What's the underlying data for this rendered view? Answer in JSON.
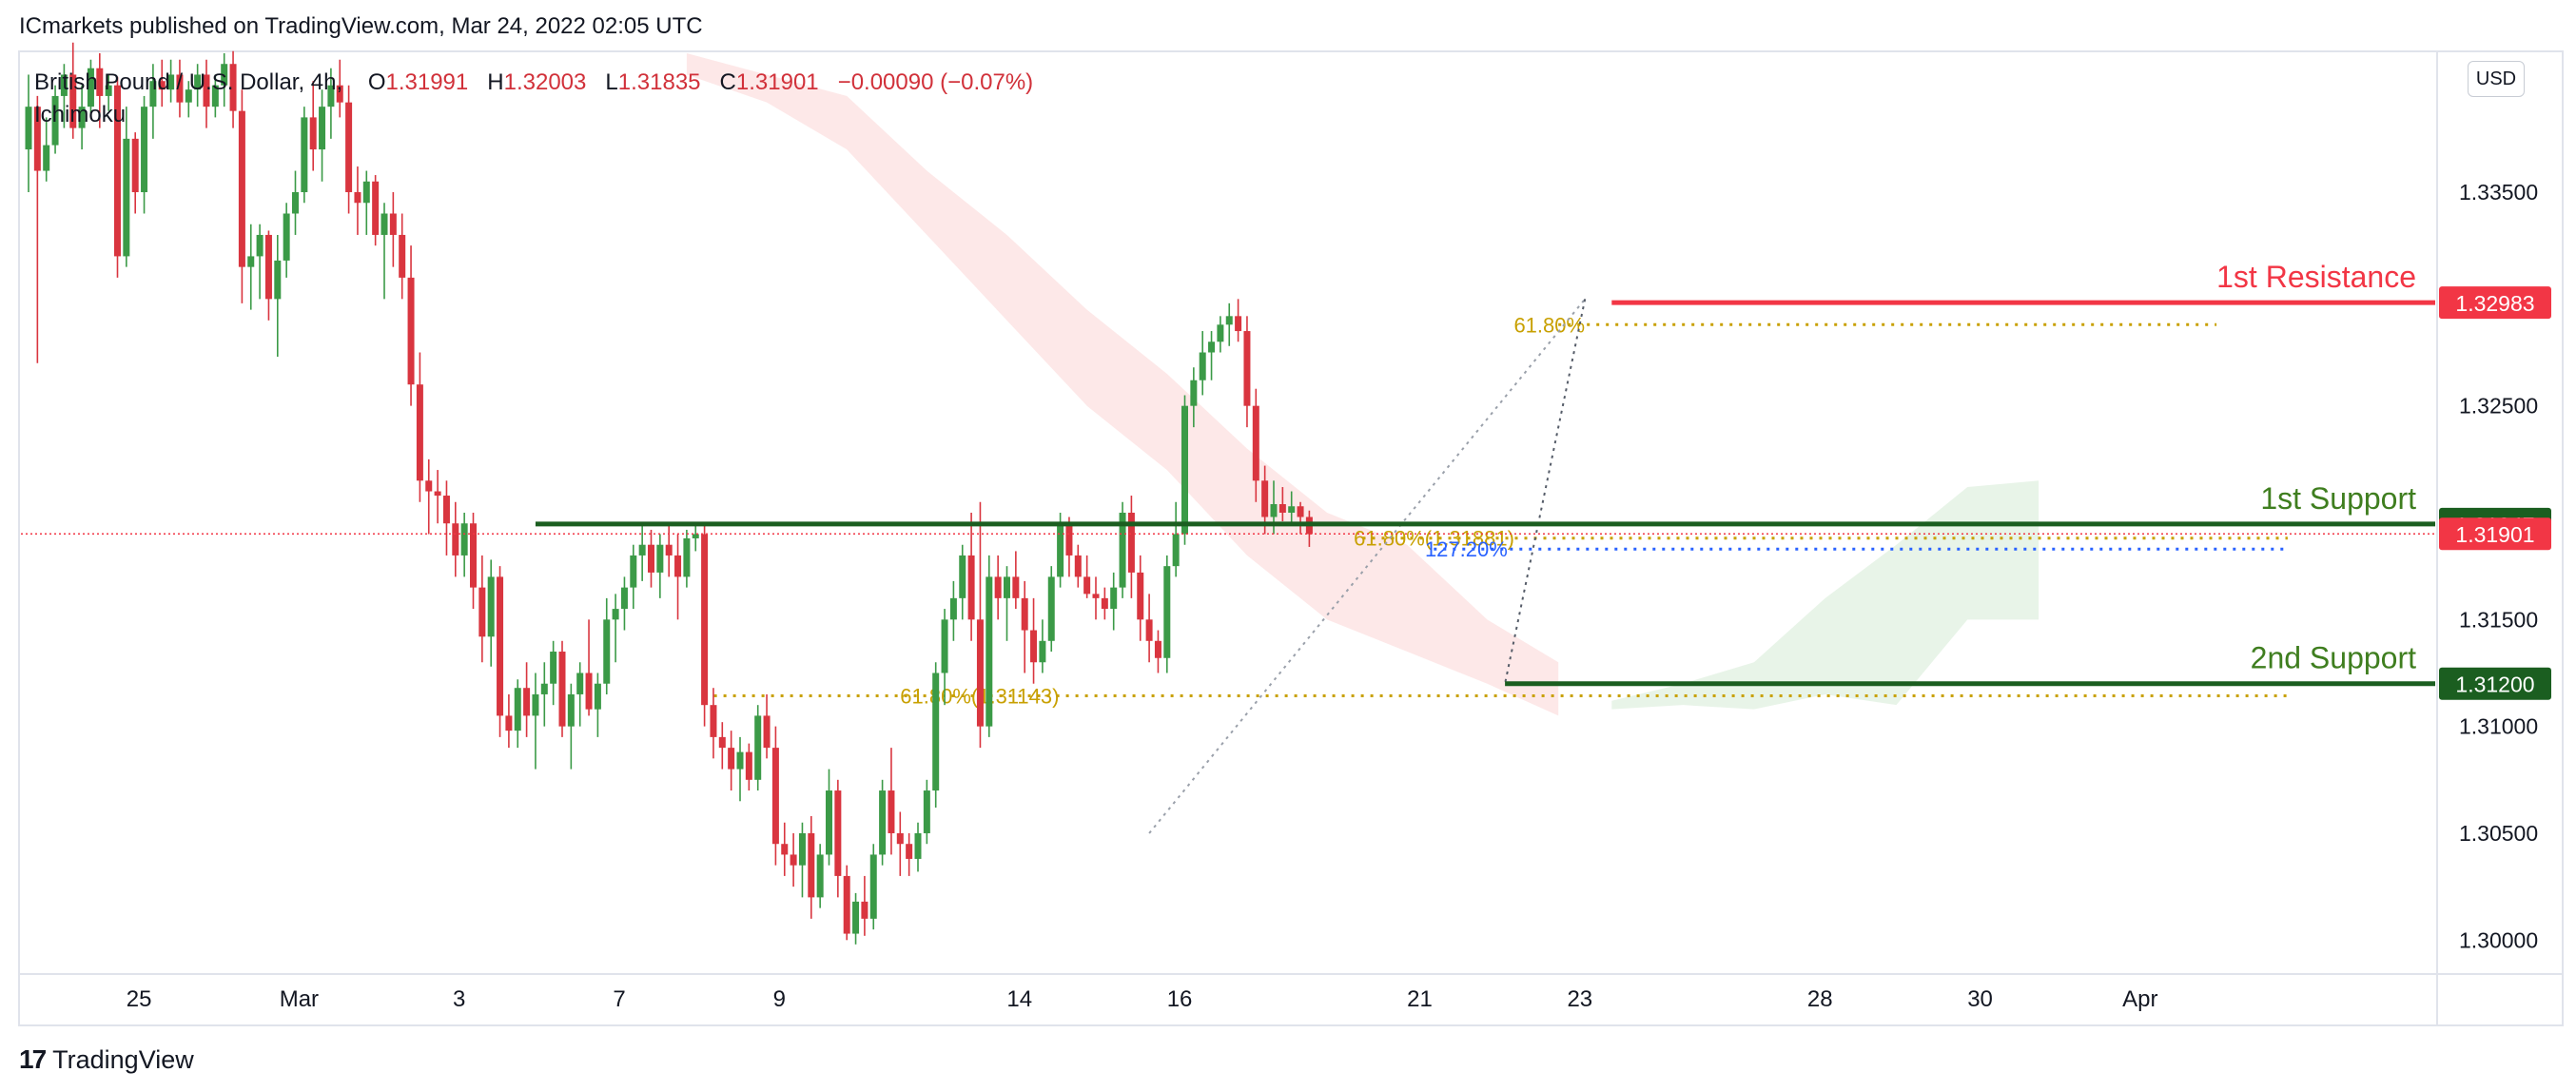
{
  "header": {
    "published_by": "ICmarkets published on TradingView.com, Mar 24, 2022 02:05 UTC"
  },
  "legend": {
    "symbol": "British Pound / U.S. Dollar, 4h,",
    "open_label": "O",
    "open": "1.31991",
    "high_label": "H",
    "high": "1.32003",
    "low_label": "L",
    "low": "1.31835",
    "close_label": "C",
    "close": "1.31901",
    "change": "−0.00090 (−0.07%)",
    "indicator": "Ichimoku"
  },
  "currency_badge": "USD",
  "footer": {
    "brand": "TradingView",
    "logo_icon": "tradingview-logo-icon"
  },
  "colors": {
    "bull": "#3b9a47",
    "bear": "#d9353f",
    "resistance": "#f23645",
    "support": "#1b5e20",
    "support_text": "#3f7e1f",
    "fib": "#c8a000",
    "cloud_bear": "#fde4e4",
    "cloud_bull": "#e5f3e5"
  },
  "chart_data": {
    "type": "candlestick",
    "symbol": "GBPUSD",
    "timeframe": "4h",
    "ylim": [
      1.2985,
      1.3415
    ],
    "y_ticks": [
      "1.33500",
      "1.32500",
      "1.31500",
      "1.31000",
      "1.30500",
      "1.30000"
    ],
    "y_tick_values": [
      1.335,
      1.325,
      1.315,
      1.31,
      1.305,
      1.3
    ],
    "x_ticks": [
      {
        "label": "25",
        "bar": 6
      },
      {
        "label": "Mar",
        "bar": 24
      },
      {
        "label": "3",
        "bar": 42
      },
      {
        "label": "7",
        "bar": 60
      },
      {
        "label": "9",
        "bar": 78
      },
      {
        "label": "14",
        "bar": 105
      },
      {
        "label": "16",
        "bar": 123
      },
      {
        "label": "21",
        "bar": 150
      },
      {
        "label": "23",
        "bar": 168
      },
      {
        "label": "28",
        "bar": 195
      },
      {
        "label": "30",
        "bar": 213
      },
      {
        "label": "Apr",
        "bar": 231
      }
    ],
    "candles": [
      [
        1.337,
        1.3405,
        1.335,
        1.339
      ],
      [
        1.339,
        1.3395,
        1.327,
        1.336
      ],
      [
        1.336,
        1.3385,
        1.3355,
        1.3372
      ],
      [
        1.3372,
        1.34,
        1.3368,
        1.3395
      ],
      [
        1.3395,
        1.341,
        1.338,
        1.3405
      ],
      [
        1.3405,
        1.342,
        1.3375,
        1.338
      ],
      [
        1.338,
        1.34,
        1.337,
        1.339
      ],
      [
        1.339,
        1.3412,
        1.3385,
        1.3408
      ],
      [
        1.3408,
        1.3415,
        1.338,
        1.3395
      ],
      [
        1.3395,
        1.3405,
        1.3388,
        1.34
      ],
      [
        1.34,
        1.3404,
        1.331,
        1.332
      ],
      [
        1.332,
        1.339,
        1.3315,
        1.3375
      ],
      [
        1.3375,
        1.3378,
        1.334,
        1.335
      ],
      [
        1.335,
        1.3395,
        1.334,
        1.339
      ],
      [
        1.339,
        1.341,
        1.3375,
        1.3402
      ],
      [
        1.3402,
        1.3412,
        1.339,
        1.3398
      ],
      [
        1.3398,
        1.3412,
        1.3392,
        1.3405
      ],
      [
        1.3405,
        1.3412,
        1.3385,
        1.3392
      ],
      [
        1.3392,
        1.3402,
        1.3385,
        1.3398
      ],
      [
        1.3398,
        1.341,
        1.339,
        1.3405
      ],
      [
        1.3405,
        1.3412,
        1.338,
        1.339
      ],
      [
        1.339,
        1.3405,
        1.3385,
        1.34
      ],
      [
        1.34,
        1.3415,
        1.339,
        1.341
      ],
      [
        1.341,
        1.3416,
        1.338,
        1.3388
      ],
      [
        1.3388,
        1.3398,
        1.3298,
        1.3315
      ],
      [
        1.3315,
        1.3335,
        1.3295,
        1.332
      ],
      [
        1.332,
        1.3335,
        1.33,
        1.333
      ],
      [
        1.333,
        1.3332,
        1.329,
        1.33
      ],
      [
        1.33,
        1.333,
        1.3273,
        1.3318
      ],
      [
        1.3318,
        1.3345,
        1.331,
        1.334
      ],
      [
        1.334,
        1.336,
        1.333,
        1.335
      ],
      [
        1.335,
        1.339,
        1.3345,
        1.3385
      ],
      [
        1.3385,
        1.3402,
        1.336,
        1.337
      ],
      [
        1.337,
        1.3398,
        1.3355,
        1.339
      ],
      [
        1.339,
        1.3408,
        1.3375,
        1.34
      ],
      [
        1.34,
        1.3412,
        1.3385,
        1.3392
      ],
      [
        1.3392,
        1.34,
        1.334,
        1.335
      ],
      [
        1.335,
        1.3362,
        1.333,
        1.3345
      ],
      [
        1.3345,
        1.336,
        1.333,
        1.3355
      ],
      [
        1.3355,
        1.3358,
        1.3325,
        1.333
      ],
      [
        1.333,
        1.3345,
        1.33,
        1.334
      ],
      [
        1.334,
        1.335,
        1.3315,
        1.333
      ],
      [
        1.333,
        1.334,
        1.33,
        1.331
      ],
      [
        1.331,
        1.3325,
        1.325,
        1.326
      ],
      [
        1.326,
        1.3275,
        1.3205,
        1.3215
      ],
      [
        1.3215,
        1.3225,
        1.319,
        1.321
      ],
      [
        1.321,
        1.322,
        1.3195,
        1.3208
      ],
      [
        1.3208,
        1.3215,
        1.318,
        1.3195
      ],
      [
        1.3195,
        1.3205,
        1.317,
        1.318
      ],
      [
        1.318,
        1.32,
        1.317,
        1.3195
      ],
      [
        1.3195,
        1.32,
        1.3155,
        1.3165
      ],
      [
        1.3165,
        1.318,
        1.313,
        1.3142
      ],
      [
        1.3142,
        1.3178,
        1.3128,
        1.317
      ],
      [
        1.317,
        1.3175,
        1.3095,
        1.3105
      ],
      [
        1.3105,
        1.3115,
        1.309,
        1.3098
      ],
      [
        1.3098,
        1.3122,
        1.309,
        1.3118
      ],
      [
        1.3118,
        1.313,
        1.3095,
        1.3105
      ],
      [
        1.3105,
        1.3125,
        1.308,
        1.3115
      ],
      [
        1.3115,
        1.313,
        1.31,
        1.312
      ],
      [
        1.312,
        1.314,
        1.311,
        1.3135
      ],
      [
        1.3135,
        1.314,
        1.3095,
        1.31
      ],
      [
        1.31,
        1.312,
        1.308,
        1.3115
      ],
      [
        1.3115,
        1.313,
        1.31,
        1.3125
      ],
      [
        1.3125,
        1.315,
        1.3105,
        1.3108
      ],
      [
        1.3108,
        1.3125,
        1.3095,
        1.312
      ],
      [
        1.312,
        1.316,
        1.3115,
        1.315
      ],
      [
        1.315,
        1.3162,
        1.313,
        1.3155
      ],
      [
        1.3155,
        1.317,
        1.3145,
        1.3165
      ],
      [
        1.3165,
        1.3185,
        1.3155,
        1.318
      ],
      [
        1.318,
        1.3195,
        1.3168,
        1.3185
      ],
      [
        1.3185,
        1.3192,
        1.3165,
        1.3172
      ],
      [
        1.3172,
        1.319,
        1.316,
        1.3185
      ],
      [
        1.3185,
        1.3195,
        1.317,
        1.318
      ],
      [
        1.318,
        1.319,
        1.315,
        1.317
      ],
      [
        1.317,
        1.3192,
        1.3165,
        1.3188
      ],
      [
        1.3188,
        1.3195,
        1.3182,
        1.319
      ],
      [
        1.319,
        1.3194,
        1.31,
        1.311
      ],
      [
        1.311,
        1.3118,
        1.3085,
        1.3095
      ],
      [
        1.3095,
        1.3102,
        1.308,
        1.309
      ],
      [
        1.309,
        1.3098,
        1.307,
        1.308
      ],
      [
        1.308,
        1.3095,
        1.3065,
        1.3088
      ],
      [
        1.3088,
        1.3092,
        1.307,
        1.3075
      ],
      [
        1.3075,
        1.311,
        1.307,
        1.3105
      ],
      [
        1.3105,
        1.3115,
        1.3085,
        1.309
      ],
      [
        1.309,
        1.31,
        1.3035,
        1.3045
      ],
      [
        1.3045,
        1.3055,
        1.303,
        1.304
      ],
      [
        1.304,
        1.305,
        1.3025,
        1.3035
      ],
      [
        1.3035,
        1.3055,
        1.302,
        1.305
      ],
      [
        1.305,
        1.3058,
        1.301,
        1.302
      ],
      [
        1.302,
        1.3045,
        1.3015,
        1.304
      ],
      [
        1.304,
        1.308,
        1.3035,
        1.307
      ],
      [
        1.307,
        1.3075,
        1.302,
        1.303
      ],
      [
        1.303,
        1.3035,
        1.3,
        1.3003
      ],
      [
        1.3003,
        1.3022,
        1.2998,
        1.3018
      ],
      [
        1.3018,
        1.303,
        1.3002,
        1.301
      ],
      [
        1.301,
        1.3045,
        1.3005,
        1.304
      ],
      [
        1.304,
        1.3075,
        1.3035,
        1.307
      ],
      [
        1.307,
        1.309,
        1.304,
        1.305
      ],
      [
        1.305,
        1.306,
        1.303,
        1.3045
      ],
      [
        1.3045,
        1.305,
        1.303,
        1.3038
      ],
      [
        1.3038,
        1.3055,
        1.3032,
        1.305
      ],
      [
        1.305,
        1.3075,
        1.3045,
        1.307
      ],
      [
        1.307,
        1.313,
        1.3062,
        1.3125
      ],
      [
        1.3125,
        1.3155,
        1.311,
        1.315
      ],
      [
        1.315,
        1.3168,
        1.314,
        1.316
      ],
      [
        1.316,
        1.3185,
        1.315,
        1.318
      ],
      [
        1.318,
        1.32,
        1.314,
        1.315
      ],
      [
        1.315,
        1.3205,
        1.309,
        1.31
      ],
      [
        1.31,
        1.318,
        1.3095,
        1.317
      ],
      [
        1.317,
        1.318,
        1.315,
        1.316
      ],
      [
        1.316,
        1.3175,
        1.314,
        1.317
      ],
      [
        1.317,
        1.3182,
        1.3155,
        1.316
      ],
      [
        1.316,
        1.3168,
        1.3125,
        1.3145
      ],
      [
        1.3145,
        1.316,
        1.312,
        1.313
      ],
      [
        1.313,
        1.315,
        1.3125,
        1.314
      ],
      [
        1.314,
        1.3175,
        1.3135,
        1.317
      ],
      [
        1.317,
        1.32,
        1.3165,
        1.3195
      ],
      [
        1.3195,
        1.3198,
        1.317,
        1.318
      ],
      [
        1.318,
        1.3185,
        1.3165,
        1.317
      ],
      [
        1.317,
        1.318,
        1.316,
        1.3162
      ],
      [
        1.3162,
        1.317,
        1.315,
        1.316
      ],
      [
        1.316,
        1.3165,
        1.315,
        1.3155
      ],
      [
        1.3155,
        1.3172,
        1.3145,
        1.3165
      ],
      [
        1.3165,
        1.3205,
        1.316,
        1.32
      ],
      [
        1.32,
        1.3208,
        1.316,
        1.3172
      ],
      [
        1.3172,
        1.318,
        1.314,
        1.315
      ],
      [
        1.315,
        1.3162,
        1.313,
        1.314
      ],
      [
        1.314,
        1.3145,
        1.3125,
        1.3132
      ],
      [
        1.3132,
        1.318,
        1.3125,
        1.3175
      ],
      [
        1.3175,
        1.3205,
        1.317,
        1.319
      ],
      [
        1.319,
        1.3255,
        1.3185,
        1.325
      ],
      [
        1.325,
        1.3268,
        1.324,
        1.3262
      ],
      [
        1.3262,
        1.3285,
        1.3255,
        1.3275
      ],
      [
        1.3275,
        1.3285,
        1.3262,
        1.328
      ],
      [
        1.328,
        1.3292,
        1.3275,
        1.3288
      ],
      [
        1.3288,
        1.3298,
        1.3278,
        1.3292
      ],
      [
        1.3292,
        1.33,
        1.328,
        1.3285
      ],
      [
        1.3285,
        1.3292,
        1.324,
        1.325
      ],
      [
        1.325,
        1.3258,
        1.3205,
        1.3215
      ],
      [
        1.3215,
        1.3222,
        1.319,
        1.3198
      ],
      [
        1.3198,
        1.3215,
        1.319,
        1.3204
      ],
      [
        1.3204,
        1.3212,
        1.3196,
        1.32
      ],
      [
        1.32,
        1.321,
        1.3194,
        1.3203
      ],
      [
        1.3203,
        1.3205,
        1.319,
        1.3198
      ],
      [
        1.3198,
        1.3201,
        1.3184,
        1.319
      ]
    ],
    "horizontal_levels": [
      {
        "label": "1st Resistance",
        "value": 1.32983,
        "price_label": "1.32983"
      },
      {
        "label": "1st Support",
        "value": 1.31947,
        "price_label": "1.31947"
      },
      {
        "label": "2nd Support",
        "value": 1.312,
        "price_label": "1.31200"
      }
    ],
    "last_price": {
      "value": 1.31901,
      "price_label": "1.31901"
    },
    "fib_levels": [
      {
        "label": "61.80%",
        "value": 1.3288
      },
      {
        "label": "61.80%(1.31143)",
        "value": 1.31143
      },
      {
        "label": "61.80%(1.31881)",
        "value": 1.31881
      },
      {
        "label": "127.20%",
        "value": 1.3183
      }
    ]
  }
}
